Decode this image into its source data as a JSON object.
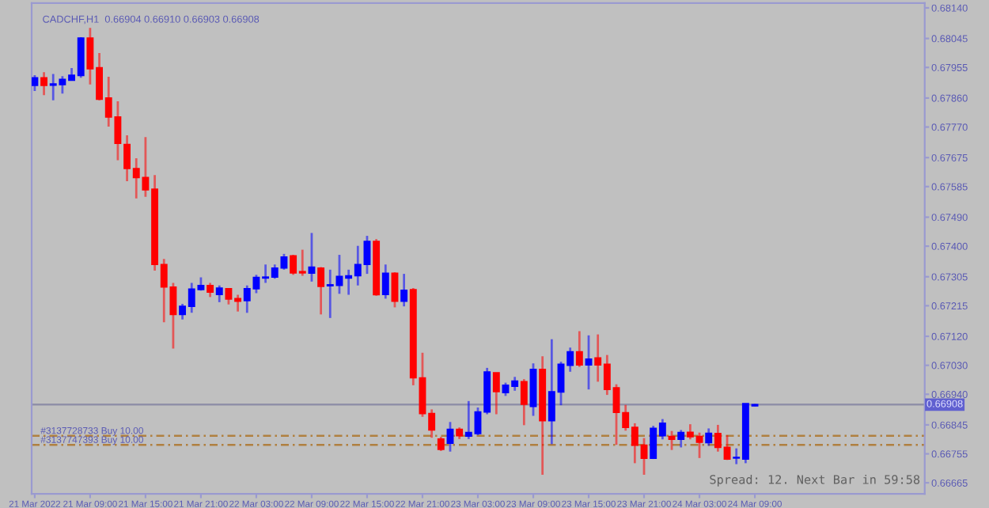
{
  "chart_data": {
    "type": "candlestick",
    "title": "CADCHF,H1  0.66904 0.66910 0.66903 0.66908",
    "x": [
      "2022-03-21T03:00",
      "2022-03-21T04:00",
      "2022-03-21T05:00",
      "2022-03-21T06:00",
      "2022-03-21T07:00",
      "2022-03-21T08:00",
      "2022-03-21T09:00",
      "2022-03-21T10:00",
      "2022-03-21T11:00",
      "2022-03-21T12:00",
      "2022-03-21T13:00",
      "2022-03-21T14:00",
      "2022-03-21T15:00",
      "2022-03-21T16:00",
      "2022-03-21T17:00",
      "2022-03-21T18:00",
      "2022-03-21T19:00",
      "2022-03-21T20:00",
      "2022-03-21T21:00",
      "2022-03-21T22:00",
      "2022-03-21T23:00",
      "2022-03-22T00:00",
      "2022-03-22T01:00",
      "2022-03-22T02:00",
      "2022-03-22T03:00",
      "2022-03-22T04:00",
      "2022-03-22T05:00",
      "2022-03-22T06:00",
      "2022-03-22T07:00",
      "2022-03-22T08:00",
      "2022-03-22T09:00",
      "2022-03-22T10:00",
      "2022-03-22T11:00",
      "2022-03-22T12:00",
      "2022-03-22T13:00",
      "2022-03-22T14:00",
      "2022-03-22T15:00",
      "2022-03-22T16:00",
      "2022-03-22T17:00",
      "2022-03-22T18:00",
      "2022-03-22T19:00",
      "2022-03-22T20:00",
      "2022-03-22T21:00",
      "2022-03-22T22:00",
      "2022-03-22T23:00",
      "2022-03-23T00:00",
      "2022-03-23T01:00",
      "2022-03-23T02:00",
      "2022-03-23T03:00",
      "2022-03-23T04:00",
      "2022-03-23T05:00",
      "2022-03-23T06:00",
      "2022-03-23T07:00",
      "2022-03-23T08:00",
      "2022-03-23T09:00",
      "2022-03-23T10:00",
      "2022-03-23T11:00",
      "2022-03-23T12:00",
      "2022-03-23T13:00",
      "2022-03-23T14:00",
      "2022-03-23T15:00",
      "2022-03-23T16:00",
      "2022-03-23T17:00",
      "2022-03-23T18:00",
      "2022-03-23T19:00",
      "2022-03-23T20:00",
      "2022-03-23T21:00",
      "2022-03-23T22:00",
      "2022-03-23T23:00",
      "2022-03-24T00:00",
      "2022-03-24T01:00",
      "2022-03-24T02:00",
      "2022-03-24T03:00",
      "2022-03-24T04:00",
      "2022-03-24T05:00",
      "2022-03-24T06:00",
      "2022-03-24T07:00",
      "2022-03-24T08:00",
      "2022-03-24T09:00"
    ],
    "ohlc": [
      [
        0.67899,
        0.67931,
        0.67882,
        0.67923
      ],
      [
        0.67923,
        0.6794,
        0.67869,
        0.67899
      ],
      [
        0.679,
        0.67935,
        0.67853,
        0.67904
      ],
      [
        0.67902,
        0.67928,
        0.67874,
        0.67918
      ],
      [
        0.67915,
        0.67953,
        0.67915,
        0.67931
      ],
      [
        0.6793,
        0.68049,
        0.67923,
        0.68046
      ],
      [
        0.68046,
        0.68078,
        0.67902,
        0.67951
      ],
      [
        0.67954,
        0.68,
        0.67853,
        0.67856
      ],
      [
        0.6786,
        0.67926,
        0.67771,
        0.67801
      ],
      [
        0.67801,
        0.6785,
        0.67667,
        0.67719
      ],
      [
        0.67716,
        0.67744,
        0.67602,
        0.67641
      ],
      [
        0.67641,
        0.67673,
        0.67548,
        0.67613
      ],
      [
        0.67613,
        0.67739,
        0.67553,
        0.67575
      ],
      [
        0.67577,
        0.67621,
        0.67324,
        0.67343
      ],
      [
        0.67343,
        0.6736,
        0.67164,
        0.67273
      ],
      [
        0.67273,
        0.67286,
        0.67082,
        0.67188
      ],
      [
        0.67188,
        0.67221,
        0.67172,
        0.67213
      ],
      [
        0.67213,
        0.67286,
        0.67193,
        0.67267
      ],
      [
        0.67265,
        0.67303,
        0.67262,
        0.67278
      ],
      [
        0.67278,
        0.67286,
        0.67242,
        0.67257
      ],
      [
        0.6725,
        0.67278,
        0.67226,
        0.6727
      ],
      [
        0.67268,
        0.6727,
        0.67219,
        0.67236
      ],
      [
        0.67237,
        0.67249,
        0.67197,
        0.67229
      ],
      [
        0.67231,
        0.67278,
        0.67193,
        0.67268
      ],
      [
        0.67268,
        0.67311,
        0.67254,
        0.67303
      ],
      [
        0.67301,
        0.67343,
        0.67286,
        0.67304
      ],
      [
        0.67304,
        0.67343,
        0.67299,
        0.67332
      ],
      [
        0.67332,
        0.67376,
        0.67327,
        0.67366
      ],
      [
        0.6737,
        0.67373,
        0.67311,
        0.67317
      ],
      [
        0.67321,
        0.67389,
        0.67308,
        0.67317
      ],
      [
        0.67316,
        0.67441,
        0.6729,
        0.67335
      ],
      [
        0.67332,
        0.67335,
        0.67188,
        0.67275
      ],
      [
        0.67277,
        0.67327,
        0.67177,
        0.6728
      ],
      [
        0.67278,
        0.67373,
        0.67252,
        0.67306
      ],
      [
        0.67301,
        0.67327,
        0.67249,
        0.67308
      ],
      [
        0.67308,
        0.67401,
        0.67278,
        0.67343
      ],
      [
        0.67343,
        0.67432,
        0.67314,
        0.67415
      ],
      [
        0.67415,
        0.67422,
        0.67246,
        0.67249
      ],
      [
        0.6725,
        0.67343,
        0.67237,
        0.67316
      ],
      [
        0.67316,
        0.67319,
        0.6721,
        0.67229
      ],
      [
        0.67229,
        0.67314,
        0.67213,
        0.67263
      ],
      [
        0.67265,
        0.6727,
        0.66968,
        0.66991
      ],
      [
        0.66991,
        0.67069,
        0.6687,
        0.6688
      ],
      [
        0.6688,
        0.66893,
        0.66805,
        0.66829
      ],
      [
        0.66801,
        0.66808,
        0.66764,
        0.66769
      ],
      [
        0.66788,
        0.66854,
        0.66762,
        0.66831
      ],
      [
        0.66831,
        0.66837,
        0.66801,
        0.66811
      ],
      [
        0.6681,
        0.66919,
        0.66801,
        0.66821
      ],
      [
        0.66818,
        0.66899,
        0.66813,
        0.66885
      ],
      [
        0.66885,
        0.67022,
        0.66878,
        0.67009
      ],
      [
        0.67007,
        0.67007,
        0.66878,
        0.66948
      ],
      [
        0.66945,
        0.66976,
        0.66935,
        0.66968
      ],
      [
        0.66965,
        0.66994,
        0.66951,
        0.66981
      ],
      [
        0.66979,
        0.66987,
        0.66844,
        0.66909
      ],
      [
        0.66902,
        0.67036,
        0.66873,
        0.67017
      ],
      [
        0.67017,
        0.67058,
        0.6669,
        0.66858
      ],
      [
        0.66858,
        0.67111,
        0.66785,
        0.66948
      ],
      [
        0.66947,
        0.67041,
        0.66906,
        0.67033
      ],
      [
        0.6703,
        0.67085,
        0.6701,
        0.67072
      ],
      [
        0.67072,
        0.67136,
        0.67025,
        0.67031
      ],
      [
        0.67031,
        0.67123,
        0.66955,
        0.67049
      ],
      [
        0.67053,
        0.67126,
        0.66979,
        0.67031
      ],
      [
        0.67033,
        0.67062,
        0.66938,
        0.66955
      ],
      [
        0.6696,
        0.66971,
        0.66783,
        0.66884
      ],
      [
        0.66883,
        0.66907,
        0.66827,
        0.66837
      ],
      [
        0.66837,
        0.6685,
        0.66726,
        0.66782
      ],
      [
        0.66782,
        0.66804,
        0.6669,
        0.66741
      ],
      [
        0.66741,
        0.66842,
        0.66739,
        0.66834
      ],
      [
        0.66811,
        0.66863,
        0.668,
        0.6685
      ],
      [
        0.66809,
        0.66826,
        0.66767,
        0.668
      ],
      [
        0.668,
        0.66829,
        0.66775,
        0.66821
      ],
      [
        0.66822,
        0.66847,
        0.668,
        0.66808
      ],
      [
        0.66809,
        0.66821,
        0.66742,
        0.66791
      ],
      [
        0.6679,
        0.66834,
        0.6678,
        0.66819
      ],
      [
        0.66818,
        0.66845,
        0.66762,
        0.66775
      ],
      [
        0.66775,
        0.66813,
        0.66736,
        0.66739
      ],
      [
        0.66742,
        0.66772,
        0.66723,
        0.66744
      ],
      [
        0.66739,
        0.66911,
        0.66726,
        0.66911
      ],
      [
        0.66904,
        0.6691,
        0.66903,
        0.66908
      ]
    ],
    "colors": [
      "#0000ff",
      "#ff0000",
      "#0000ff",
      "#0000ff",
      "#0000ff",
      "#0000ff",
      "#ff0000",
      "#ff0000",
      "#ff0000",
      "#ff0000",
      "#ff0000",
      "#ff0000",
      "#ff0000",
      "#ff0000",
      "#ff0000",
      "#ff0000",
      "#0000ff",
      "#0000ff",
      "#0000ff",
      "#ff0000",
      "#0000ff",
      "#ff0000",
      "#ff0000",
      "#0000ff",
      "#0000ff",
      "#0000ff",
      "#0000ff",
      "#0000ff",
      "#ff0000",
      "#ff0000",
      "#0000ff",
      "#ff0000",
      "#0000ff",
      "#0000ff",
      "#0000ff",
      "#0000ff",
      "#0000ff",
      "#ff0000",
      "#0000ff",
      "#ff0000",
      "#0000ff",
      "#ff0000",
      "#ff0000",
      "#ff0000",
      "#ff0000",
      "#0000ff",
      "#ff0000",
      "#0000ff",
      "#0000ff",
      "#0000ff",
      "#ff0000",
      "#0000ff",
      "#0000ff",
      "#ff0000",
      "#0000ff",
      "#ff0000",
      "#0000ff",
      "#0000ff",
      "#0000ff",
      "#ff0000",
      "#0000ff",
      "#ff0000",
      "#ff0000",
      "#ff0000",
      "#ff0000",
      "#ff0000",
      "#ff0000",
      "#0000ff",
      "#0000ff",
      "#ff0000",
      "#0000ff",
      "#ff0000",
      "#ff0000",
      "#0000ff",
      "#ff0000",
      "#ff0000",
      "#0000ff",
      "#0000ff",
      "#0000ff"
    ],
    "xlim": [
      "2022-03-21T02:40",
      "2022-03-25T03:24"
    ],
    "xticks": [
      {
        "value": "2022-03-21T03:00",
        "label": "21 Mar 2022"
      },
      {
        "value": "2022-03-21T09:00",
        "label": "21 Mar 09:00"
      },
      {
        "value": "2022-03-21T15:00",
        "label": "21 Mar 15:00"
      },
      {
        "value": "2022-03-21T21:00",
        "label": "21 Mar 21:00"
      },
      {
        "value": "2022-03-22T03:00",
        "label": "22 Mar 03:00"
      },
      {
        "value": "2022-03-22T09:00",
        "label": "22 Mar 09:00"
      },
      {
        "value": "2022-03-22T15:00",
        "label": "22 Mar 15:00"
      },
      {
        "value": "2022-03-22T21:00",
        "label": "22 Mar 21:00"
      },
      {
        "value": "2022-03-23T03:00",
        "label": "23 Mar 03:00"
      },
      {
        "value": "2022-03-23T09:00",
        "label": "23 Mar 09:00"
      },
      {
        "value": "2022-03-23T15:00",
        "label": "23 Mar 15:00"
      },
      {
        "value": "2022-03-23T21:00",
        "label": "23 Mar 21:00"
      },
      {
        "value": "2022-03-24T03:00",
        "label": "24 Mar 03:00"
      },
      {
        "value": "2022-03-24T09:00",
        "label": "24 Mar 09:00"
      }
    ],
    "ylim": [
      0.66631,
      0.68155
    ],
    "yticks": [
      {
        "value": 0.6814,
        "label": "0.68140"
      },
      {
        "value": 0.68045,
        "label": "0.68045"
      },
      {
        "value": 0.67955,
        "label": "0.67955"
      },
      {
        "value": 0.6786,
        "label": "0.67860"
      },
      {
        "value": 0.6777,
        "label": "0.67770"
      },
      {
        "value": 0.67675,
        "label": "0.67675"
      },
      {
        "value": 0.67585,
        "label": "0.67585"
      },
      {
        "value": 0.6749,
        "label": "0.67490"
      },
      {
        "value": 0.674,
        "label": "0.67400"
      },
      {
        "value": 0.67305,
        "label": "0.67305"
      },
      {
        "value": 0.67215,
        "label": "0.67215"
      },
      {
        "value": 0.6712,
        "label": "0.67120"
      },
      {
        "value": 0.6703,
        "label": "0.67030"
      },
      {
        "value": 0.6694,
        "label": "0.66940"
      },
      {
        "value": 0.66845,
        "label": "0.66845"
      },
      {
        "value": 0.66755,
        "label": "0.66755"
      },
      {
        "value": 0.66665,
        "label": "0.66665"
      }
    ],
    "ref_lines": [
      {
        "axis": "y",
        "value": 0.66908,
        "label": "0.66908",
        "color": "#9090a8",
        "line_style": "solid"
      },
      {
        "axis": "y",
        "value": 0.66811,
        "label": "#3137728733 Buy 10.00",
        "color": "#b08040",
        "line_style": "dashed"
      },
      {
        "axis": "y",
        "value": 0.66783,
        "label": "#3137747393 Buy 10.00",
        "color": "#b08040",
        "line_style": "dashed"
      }
    ],
    "annotations": [
      "Spread: 12. Next Bar in 59:58"
    ],
    "grid": false
  }
}
